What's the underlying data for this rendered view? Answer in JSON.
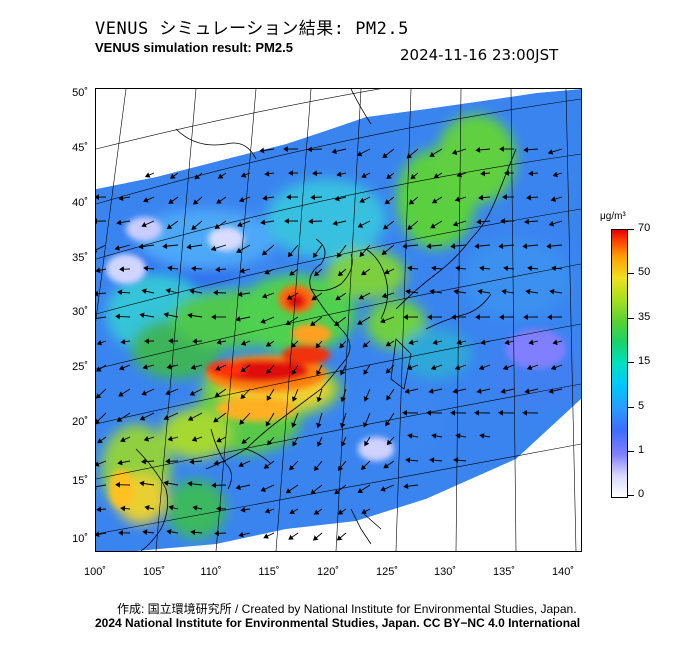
{
  "header": {
    "title_jp": "VENUS シミュレーション結果: PM2.5",
    "title_en": "VENUS simulation result: PM2.5",
    "timestamp": "2024-11-16 23:00JST"
  },
  "map": {
    "variable": "PM2.5",
    "lat_labels": [
      "50˚",
      "45˚",
      "40˚",
      "35˚",
      "30˚",
      "25˚",
      "20˚",
      "15˚",
      "10˚"
    ],
    "lon_labels": [
      "100˚",
      "105˚",
      "110˚",
      "115˚",
      "120˚",
      "125˚",
      "130˚",
      "135˚",
      "140˚"
    ],
    "lat_range": [
      9,
      50
    ],
    "lon_range": [
      100,
      142
    ],
    "overlays": [
      "pm25-concentration-field",
      "wind-vectors",
      "coastlines",
      "graticule"
    ]
  },
  "colorbar": {
    "unit": "μg/m³",
    "labels": [
      "70",
      "50",
      "35",
      "15",
      "5",
      "1",
      "0"
    ],
    "colors": {
      "0": "#ffffff",
      "1": "#7f7fff",
      "5": "#00c8ff",
      "15": "#19d26a",
      "35": "#f0e020",
      "50": "#ffa000",
      "70": "#e00000"
    }
  },
  "footer": {
    "credit": "作成: 国立環境研究所 / Created by National Institute for Environmental Studies, Japan.",
    "copyright": "2024 National Institute for Environmental Studies, Japan. CC BY−NC 4.0 International"
  }
}
